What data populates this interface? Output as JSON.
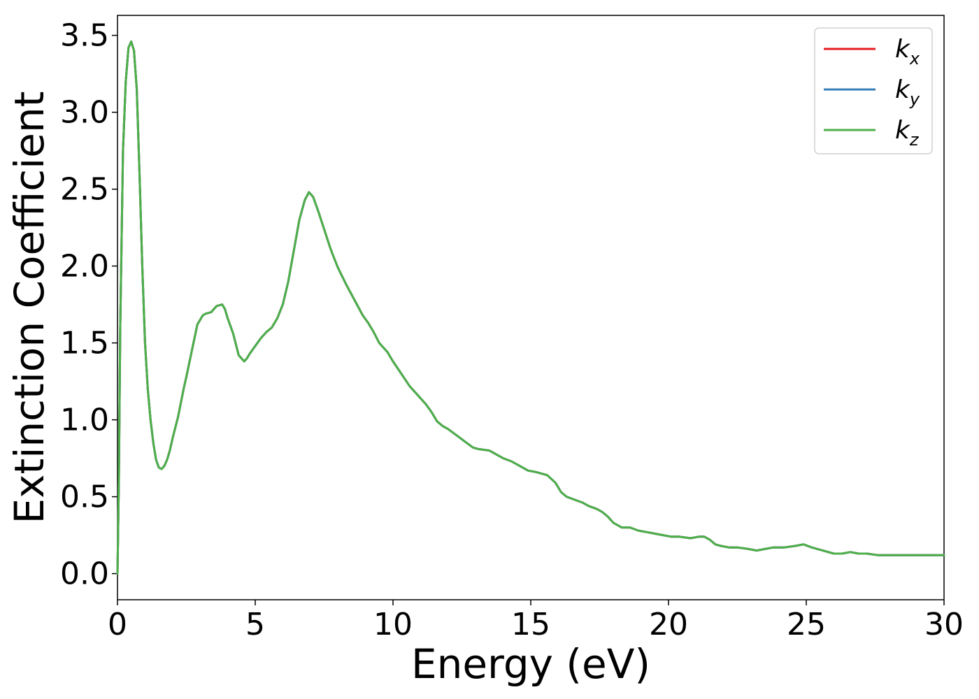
{
  "chart_data": {
    "type": "line",
    "title": "",
    "xlabel": "Energy (eV)",
    "ylabel": "Extinction Coefficient",
    "xlim": [
      0,
      30
    ],
    "ylim": [
      -0.17,
      3.63
    ],
    "xticks": [
      "0",
      "5",
      "10",
      "15",
      "20",
      "25",
      "30"
    ],
    "yticks": [
      "0.0",
      "0.5",
      "1.0",
      "1.5",
      "2.0",
      "2.5",
      "3.0",
      "3.5"
    ],
    "grid": false,
    "legend_position": "top-right",
    "series": [
      {
        "name": "k",
        "subscript": "x",
        "color": "#e41a1c"
      },
      {
        "name": "k",
        "subscript": "y",
        "color": "#377eb8"
      },
      {
        "name": "k",
        "subscript": "z",
        "color": "#4daf4a"
      }
    ],
    "x": [
      0,
      0.05,
      0.1,
      0.2,
      0.3,
      0.4,
      0.5,
      0.6,
      0.7,
      0.8,
      0.9,
      1.0,
      1.1,
      1.2,
      1.3,
      1.4,
      1.5,
      1.6,
      1.7,
      1.8,
      1.9,
      2.0,
      2.2,
      2.4,
      2.5,
      2.7,
      2.9,
      3.1,
      3.2,
      3.4,
      3.6,
      3.8,
      3.9,
      4.0,
      4.2,
      4.4,
      4.6,
      4.7,
      4.8,
      5.0,
      5.2,
      5.4,
      5.6,
      5.8,
      6.0,
      6.2,
      6.4,
      6.6,
      6.8,
      6.95,
      7.1,
      7.3,
      7.5,
      7.7,
      7.8,
      8.0,
      8.3,
      8.6,
      8.9,
      9.1,
      9.3,
      9.5,
      9.8,
      10.0,
      10.3,
      10.6,
      10.9,
      11.2,
      11.4,
      11.6,
      11.8,
      12.0,
      12.3,
      12.6,
      12.9,
      13.1,
      13.5,
      13.8,
      14.0,
      14.3,
      14.6,
      14.9,
      15.2,
      15.6,
      15.9,
      16.1,
      16.3,
      16.6,
      16.9,
      17.1,
      17.4,
      17.6,
      17.8,
      18.0,
      18.3,
      18.6,
      18.9,
      19.2,
      19.5,
      19.8,
      20.1,
      20.4,
      20.8,
      21.1,
      21.3,
      21.5,
      21.7,
      21.9,
      22.2,
      22.5,
      22.9,
      23.2,
      23.5,
      23.8,
      24.2,
      24.6,
      24.9,
      25.2,
      25.6,
      26.0,
      26.3,
      26.6,
      26.9,
      27.2,
      27.6,
      28.0,
      28.3,
      28.6,
      28.9,
      29.3,
      29.6,
      30.0
    ],
    "y": [
      0.0,
      0.6,
      1.6,
      2.75,
      3.2,
      3.42,
      3.46,
      3.4,
      3.15,
      2.6,
      2.0,
      1.5,
      1.2,
      1.0,
      0.85,
      0.74,
      0.69,
      0.68,
      0.7,
      0.74,
      0.8,
      0.88,
      1.02,
      1.2,
      1.28,
      1.45,
      1.62,
      1.68,
      1.69,
      1.7,
      1.74,
      1.75,
      1.72,
      1.66,
      1.56,
      1.42,
      1.38,
      1.4,
      1.43,
      1.48,
      1.53,
      1.57,
      1.6,
      1.66,
      1.75,
      1.9,
      2.1,
      2.3,
      2.43,
      2.48,
      2.45,
      2.35,
      2.24,
      2.13,
      2.08,
      1.99,
      1.88,
      1.78,
      1.68,
      1.63,
      1.57,
      1.5,
      1.44,
      1.38,
      1.3,
      1.22,
      1.16,
      1.1,
      1.05,
      0.99,
      0.96,
      0.94,
      0.9,
      0.86,
      0.82,
      0.81,
      0.8,
      0.77,
      0.75,
      0.73,
      0.7,
      0.67,
      0.66,
      0.64,
      0.59,
      0.53,
      0.5,
      0.48,
      0.46,
      0.44,
      0.42,
      0.4,
      0.37,
      0.33,
      0.3,
      0.3,
      0.28,
      0.27,
      0.26,
      0.25,
      0.24,
      0.24,
      0.23,
      0.24,
      0.24,
      0.22,
      0.19,
      0.18,
      0.17,
      0.17,
      0.16,
      0.15,
      0.16,
      0.17,
      0.17,
      0.18,
      0.19,
      0.17,
      0.15,
      0.13,
      0.13,
      0.14,
      0.13,
      0.13,
      0.12,
      0.12,
      0.12,
      0.12,
      0.12,
      0.12,
      0.12,
      0.12
    ]
  }
}
